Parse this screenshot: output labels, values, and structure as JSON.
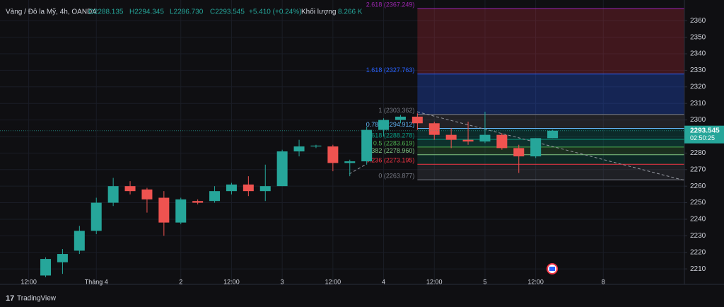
{
  "chart_data": {
    "type": "candlestick",
    "header": {
      "symbol": "Vàng / Đô la Mỹ, 4h, OANDA",
      "open": "O2288.135",
      "high": "H2294.345",
      "low": "L2286.730",
      "close": "C2293.545",
      "change": "+5.410 (+0.24%)",
      "volume_label": "Khối lượng",
      "volume": "8.266 K"
    },
    "x": [
      0,
      1,
      2,
      3,
      4,
      5,
      6,
      7,
      8,
      9,
      10,
      11,
      12,
      13,
      14,
      15,
      16,
      17,
      18,
      19,
      20,
      21,
      22,
      23,
      24,
      25,
      26,
      27,
      28,
      29,
      30
    ],
    "open": [
      2206,
      2214,
      2221,
      2233,
      2250,
      2260,
      2258,
      2253,
      2238,
      2251,
      2251,
      2257,
      2261,
      2257,
      2260,
      2281,
      2284,
      2284,
      2274,
      2275,
      2294,
      2300,
      2302,
      2298,
      2291,
      2288,
      2287,
      2291,
      2283,
      2278,
      2289
    ],
    "high": [
      2217,
      2222,
      2236,
      2253,
      2265,
      2263,
      2259,
      2257,
      2253,
      2252,
      2260,
      2262,
      2266,
      2273,
      2282,
      2288,
      2285,
      2285,
      2276,
      2296,
      2301,
      2303,
      2304,
      2299,
      2295,
      2299,
      2305,
      2292,
      2285,
      2289,
      2294
    ],
    "low": [
      2205,
      2207,
      2219,
      2231,
      2248,
      2255,
      2244,
      2230,
      2237,
      2249,
      2250,
      2255,
      2254,
      2251,
      2260,
      2278,
      2283,
      2269,
      2266,
      2273,
      2290,
      2298,
      2294,
      2288,
      2283,
      2285,
      2286,
      2282,
      2268,
      2277,
      2289
    ],
    "close": [
      2216,
      2219,
      2233,
      2250,
      2260,
      2257,
      2252,
      2238,
      2252,
      2250,
      2257,
      2261,
      2257,
      2260,
      2281,
      2284,
      2284.5,
      2274,
      2275,
      2294,
      2300,
      2302,
      2298,
      2291,
      2288,
      2287,
      2291,
      2283,
      2278,
      2289,
      2293.5
    ],
    "up_color": "#26a69a",
    "down_color": "#ef5350",
    "xlim": [
      -2.7,
      37.8
    ],
    "xticks": [
      {
        "value": -1,
        "label": "12:00"
      },
      {
        "value": 3,
        "label": "Tháng 4"
      },
      {
        "value": 8,
        "label": "2"
      },
      {
        "value": 11,
        "label": "12:00"
      },
      {
        "value": 14,
        "label": "3"
      },
      {
        "value": 17,
        "label": "12:00"
      },
      {
        "value": 20,
        "label": "4"
      },
      {
        "value": 23,
        "label": "12:00"
      },
      {
        "value": 26,
        "label": "5"
      },
      {
        "value": 29,
        "label": "12:00"
      },
      {
        "value": 33,
        "label": "8"
      }
    ],
    "ylim": [
      2201.5,
      2372.5
    ],
    "yticks": [
      2210,
      2220,
      2230,
      2240,
      2250,
      2260,
      2270,
      2280,
      2290,
      2300,
      2310,
      2320,
      2330,
      2340,
      2350,
      2360
    ],
    "grid": true,
    "last_price": {
      "value": 2293.545,
      "label": "2293.545",
      "countdown": "02:50:25"
    },
    "fib": {
      "start": 22,
      "levels": [
        {
          "value": 2367.249,
          "label": "2.618 (2367.249)",
          "color": "#9c27b0",
          "fill": "rgba(242,54,69,0.22)"
        },
        {
          "value": 2327.763,
          "label": "1.618 (2327.763)",
          "color": "#2962ff",
          "fill": "rgba(41,98,255,0.28)"
        },
        {
          "value": 2303.362,
          "label": "1 (2303.362)",
          "color": "#787b86",
          "fill": "rgba(120,123,134,0.18)"
        },
        {
          "value": 2294.912,
          "label": "0.786 (2294.912)",
          "color": "#64b5f6",
          "fill": "rgba(0,150,136,0.2)"
        },
        {
          "value": 2288.278,
          "label": "0.618 (2288.278)",
          "color": "#089981",
          "fill": "rgba(8,153,129,0.25)"
        },
        {
          "value": 2283.619,
          "label": "0.5 (2283.619)",
          "color": "#4caf50",
          "fill": "rgba(76,175,80,0.2)"
        },
        {
          "value": 2278.96,
          "label": "0.382 (2278.960)",
          "color": "#81c784",
          "fill": "rgba(8,153,129,0.18)"
        },
        {
          "value": 2273.195,
          "label": "0.236 (2273.195)",
          "color": "#f23645",
          "fill": "rgba(120,123,134,0.16)"
        },
        {
          "value": 2263.877,
          "label": "0 (2263.877)",
          "color": "#787b86"
        }
      ]
    },
    "brand": "TradingView"
  }
}
